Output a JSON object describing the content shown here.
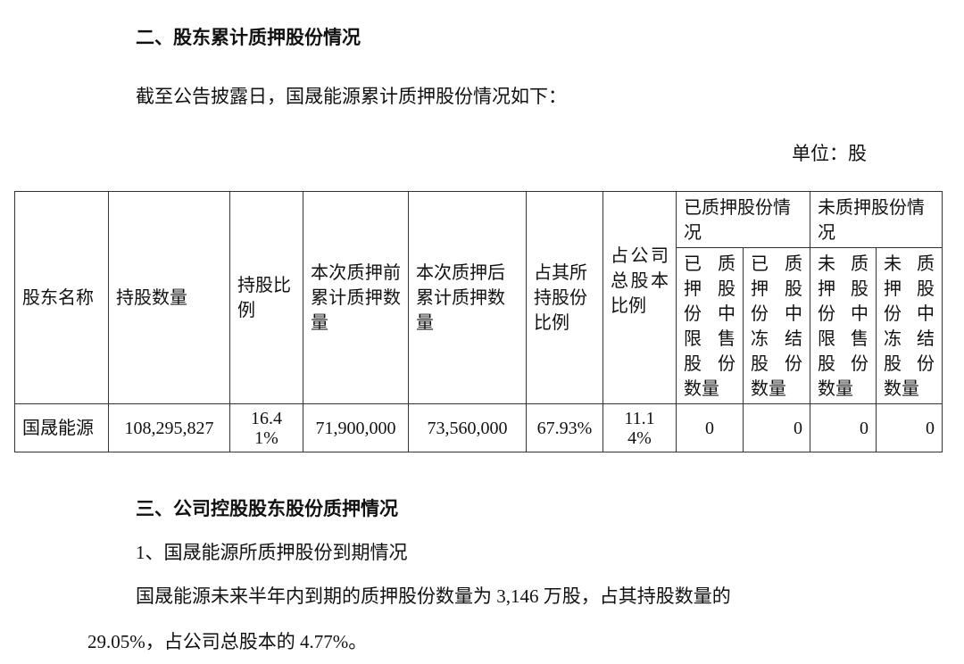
{
  "section2_heading": "二、股东累计质押股份情况",
  "section2_intro": "截至公告披露日，国晟能源累计质押股份情况如下：",
  "unit_label": "单位：股",
  "table": {
    "headers": {
      "name": "股东名称",
      "shares": "持股数量",
      "ratio": "持股比例",
      "before": "本次质押前累计质押数量",
      "after": "本次质押后累计质押数量",
      "pct_own": "占其所持股份比例",
      "pct_total": "占公司总股本比例",
      "pledged_group": "已质押股份情况",
      "unpledged_group": "未质押股份情况",
      "pledged_restricted": "已质押股份中限售股份数量",
      "pledged_frozen": "已质押股份中冻结股份数量",
      "unpledged_restricted": "未质押股份中限售股份数量",
      "unpledged_frozen": "未质押股份中冻结股份数量"
    },
    "rows": [
      {
        "name": "国晟能源",
        "shares": "108,295,827",
        "ratio": "16.41%",
        "before": "71,900,000",
        "after": "73,560,000",
        "pct_own": "67.93%",
        "pct_total": "11.14%",
        "pledged_restricted": "0",
        "pledged_frozen": "0",
        "unpledged_restricted": "0",
        "unpledged_frozen": "0"
      }
    ]
  },
  "section3_heading": "三、公司控股股东股份质押情况",
  "section3_sub1": "1、国晟能源所质押股份到期情况",
  "section3_para_line1": "国晟能源未来半年内到期的质押股份数量为 3,146 万股，占其持股数量的",
  "section3_para_line2": "29.05%，占公司总股本的 4.77%。"
}
